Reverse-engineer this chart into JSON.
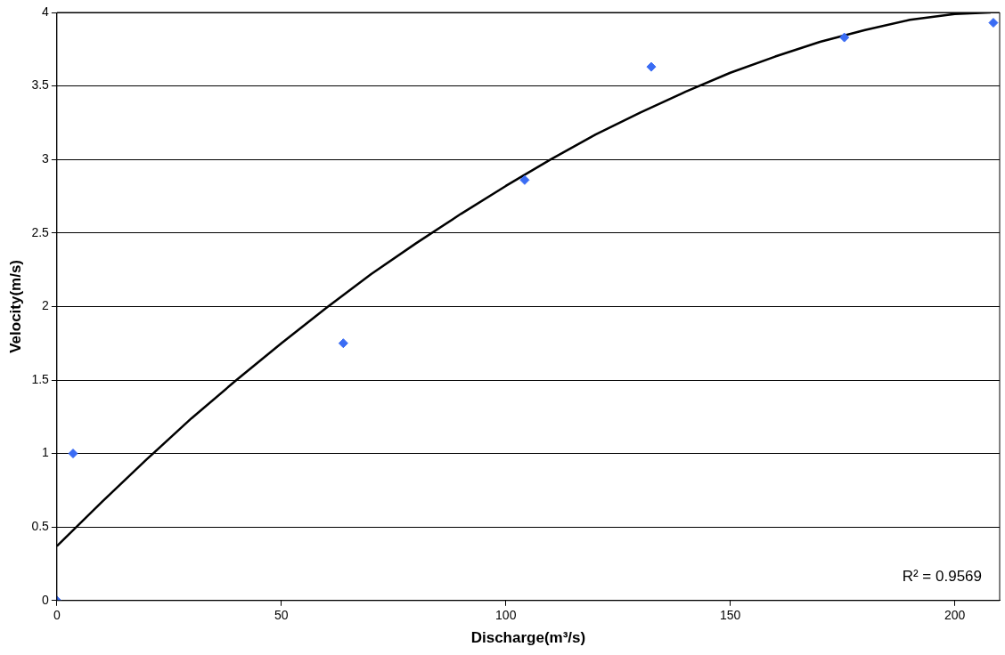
{
  "chart_data": {
    "type": "scatter",
    "xlabel": "Discharge(m³/s)",
    "ylabel": "Velocity(m/s)",
    "xlim": [
      0,
      210
    ],
    "xticks": [
      0,
      50,
      100,
      150,
      200
    ],
    "ylim": [
      0,
      4
    ],
    "yticks": [
      0,
      0.5,
      1,
      1.5,
      2,
      2.5,
      3,
      3.5,
      4
    ],
    "grid": "y",
    "legend": false,
    "marker": "diamond",
    "annotations": [
      "R² = 0.9569"
    ],
    "series": [
      {
        "color": "#3a6cf4",
        "x": [
          0,
          3.6,
          63.8,
          104.2,
          132.4,
          175.4,
          208.6
        ],
        "values": [
          0,
          1.0,
          1.75,
          2.86,
          3.63,
          3.83,
          3.93
        ]
      },
      {
        "type": "line",
        "color": "#000000",
        "marker": "none",
        "x": [
          0,
          10,
          20,
          30,
          40,
          50,
          60,
          70,
          80,
          90,
          100,
          110,
          120,
          130,
          140,
          150,
          160,
          170,
          180,
          190,
          200,
          208
        ],
        "values": [
          0.37,
          0.67,
          0.96,
          1.24,
          1.5,
          1.75,
          1.99,
          2.22,
          2.43,
          2.63,
          2.82,
          3.0,
          3.17,
          3.32,
          3.46,
          3.59,
          3.7,
          3.8,
          3.88,
          3.95,
          3.99,
          4.0
        ]
      }
    ]
  }
}
